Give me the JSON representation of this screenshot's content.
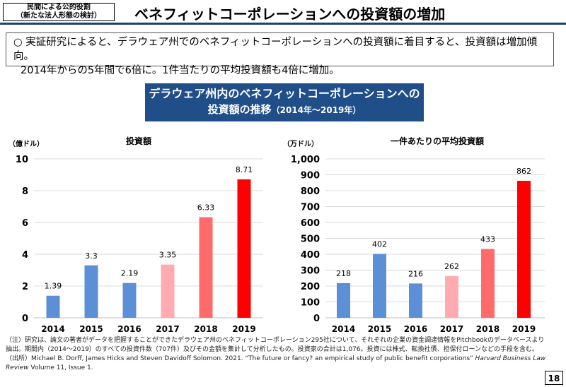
{
  "header": {
    "tag_line1": "民間による公的役割",
    "tag_line2": "（新たな法人形態の検討）",
    "title": "ベネフィットコーポレーションへの投資額の増加"
  },
  "summary": {
    "line1": "○ 実証研究によると、デラウェア州でのベネフィットコーポレーションへの投資額に着目すると、投資額は増加傾向。",
    "line2": "2014年からの5年間で6倍に。1件当たりの平均投資額も4倍に増加。"
  },
  "banner": {
    "line1": "デラウェア州内のベネフィットコーポレーションへの",
    "line2_main": "投資額の推移",
    "line2_sub": "（2014年～2019年）"
  },
  "chart_data": [
    {
      "type": "bar",
      "title": "投資額",
      "ylabel": "（億ドル）",
      "categories": [
        "2014",
        "2015",
        "2016",
        "2017",
        "2018",
        "2019"
      ],
      "values": [
        1.39,
        3.3,
        2.19,
        3.35,
        6.33,
        8.71
      ],
      "data_labels": [
        "1.39",
        "3.3",
        "2.19",
        "3.35",
        "6.33",
        "8.71"
      ],
      "ylim": [
        0,
        10
      ],
      "yticks": [
        0,
        2,
        4,
        6,
        8,
        10
      ],
      "ytick_labels": [
        "0",
        "2",
        "4",
        "6",
        "8",
        "10"
      ],
      "colors": [
        "#5b8fd6",
        "#5b8fd6",
        "#5b8fd6",
        "#ffabb0",
        "#ff6b6b",
        "#ff0000"
      ],
      "grid": true
    },
    {
      "type": "bar",
      "title": "一件あたりの平均投資額",
      "ylabel": "（万ドル）",
      "categories": [
        "2014",
        "2015",
        "2016",
        "2017",
        "2018",
        "2019"
      ],
      "values": [
        218,
        402,
        216,
        262,
        433,
        862
      ],
      "data_labels": [
        "218",
        "402",
        "216",
        "262",
        "433",
        "862"
      ],
      "ylim": [
        0,
        1000
      ],
      "yticks": [
        0,
        100,
        200,
        300,
        400,
        500,
        600,
        700,
        800,
        900,
        1000
      ],
      "ytick_labels": [
        "0",
        "100",
        "200",
        "300",
        "400",
        "500",
        "600",
        "700",
        "800",
        "900",
        "1,000"
      ],
      "colors": [
        "#5b8fd6",
        "#5b8fd6",
        "#5b8fd6",
        "#ffabb0",
        "#ff6b6b",
        "#ff0000"
      ],
      "grid": true
    }
  ],
  "notes": {
    "note1": "（注）研究は、論文の著者がデータを把握することができたデラウェア州のベネフィットコーポレーション295社について、それぞれの企業の資金調達情報をPitchbookのデータベースより抽出。期間内（2014～2019）のすべての投資件数（707件）及びその金額を集計して分析したもの。投資家の合計は1,076。投資には株式、転換社債、担保付ローンなどの手段を含む。",
    "source_prefix": "（出所）Michael B. Dorff, James Hicks and Steven Davidoff Solomon. 2021. “The future or fancy? an empirical study of public benefit corporations” ",
    "source_journal": "Harvard Business Law Review",
    "source_suffix": " Volume 11, Issue 1."
  },
  "page_number": "18"
}
